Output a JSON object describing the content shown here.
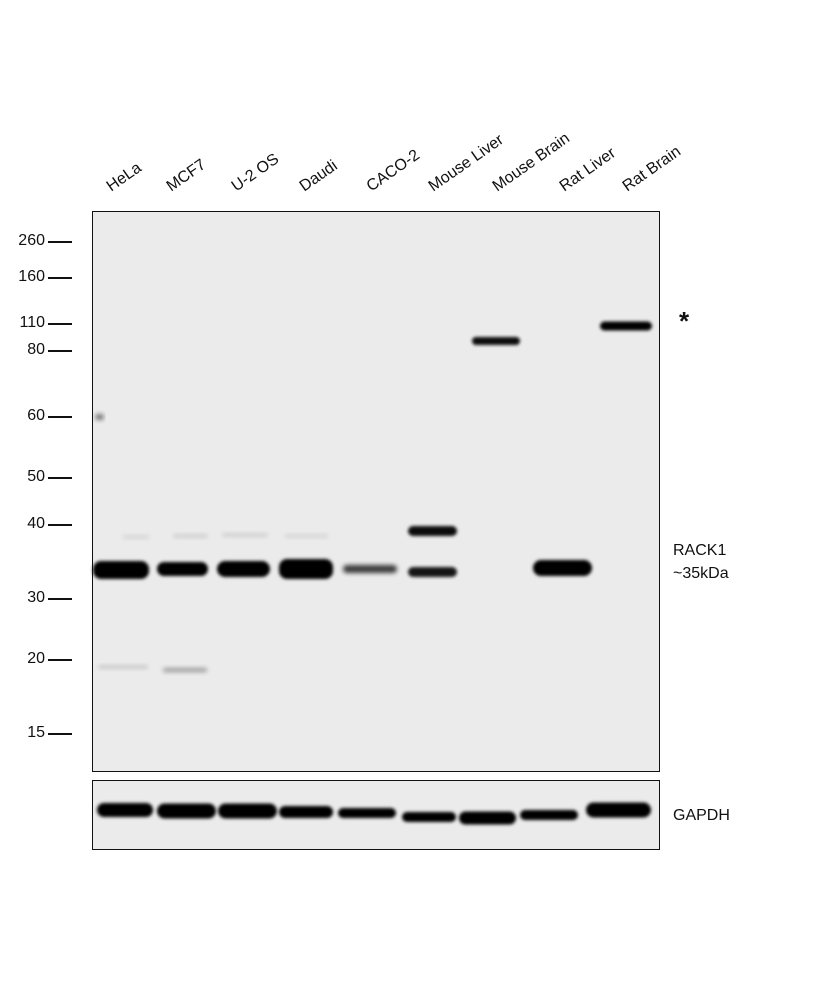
{
  "lanes": [
    "HeLa",
    "MCF7",
    "U-2 OS",
    "Daudi",
    "CACO-2",
    "Mouse Liver",
    "Mouse Brain",
    "Rat Liver",
    "Rat Brain"
  ],
  "markers": [
    "260",
    "160",
    "110",
    "80",
    "60",
    "50",
    "40",
    "30",
    "20",
    "15"
  ],
  "annotations": {
    "asterisk": "*",
    "target": "RACK1",
    "target_size": "~35kDa",
    "loading_control": "GAPDH"
  },
  "colors": {
    "membrane": "#ebebeb",
    "band": "#050505"
  }
}
